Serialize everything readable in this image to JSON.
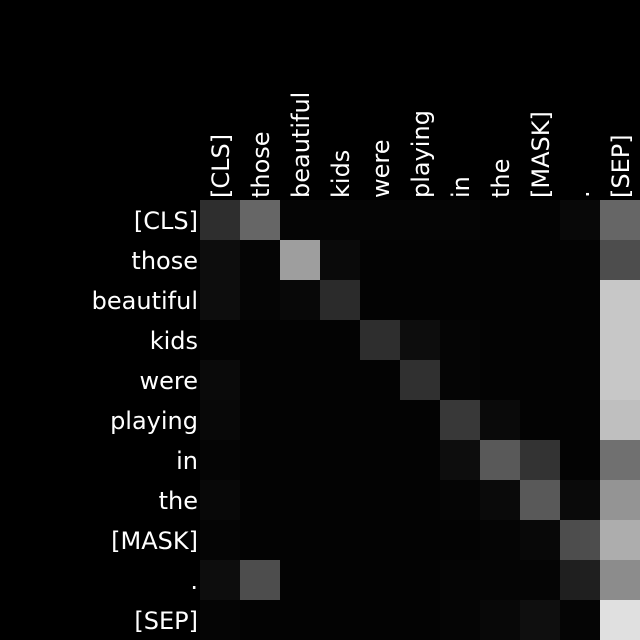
{
  "chart_data": {
    "type": "heatmap",
    "title": "",
    "xlabel": "",
    "ylabel": "",
    "x_labels": [
      "[CLS]",
      "those",
      "beautiful",
      "kids",
      "were",
      "playing",
      "in",
      "the",
      "[MASK]",
      ".",
      "[SEP]"
    ],
    "y_labels": [
      "[CLS]",
      "those",
      "beautiful",
      "kids",
      "were",
      "playing",
      "in",
      "the",
      "[MASK]",
      ".",
      "[SEP]"
    ],
    "colormap": "grayscale",
    "value_range": [
      0,
      1
    ],
    "values": [
      [
        0.18,
        0.4,
        0.02,
        0.02,
        0.02,
        0.02,
        0.02,
        0.01,
        0.01,
        0.03,
        0.4
      ],
      [
        0.05,
        0.02,
        0.62,
        0.04,
        0.01,
        0.01,
        0.01,
        0.01,
        0.01,
        0.01,
        0.3
      ],
      [
        0.05,
        0.02,
        0.03,
        0.17,
        0.01,
        0.01,
        0.01,
        0.01,
        0.01,
        0.01,
        0.78
      ],
      [
        0.01,
        0.01,
        0.01,
        0.01,
        0.18,
        0.05,
        0.02,
        0.01,
        0.01,
        0.01,
        0.78
      ],
      [
        0.04,
        0.01,
        0.01,
        0.01,
        0.01,
        0.19,
        0.02,
        0.01,
        0.01,
        0.01,
        0.78
      ],
      [
        0.03,
        0.01,
        0.01,
        0.01,
        0.01,
        0.01,
        0.22,
        0.04,
        0.01,
        0.01,
        0.75
      ],
      [
        0.02,
        0.01,
        0.01,
        0.01,
        0.01,
        0.01,
        0.05,
        0.35,
        0.2,
        0.01,
        0.44
      ],
      [
        0.03,
        0.01,
        0.01,
        0.01,
        0.01,
        0.01,
        0.02,
        0.04,
        0.35,
        0.04,
        0.58
      ],
      [
        0.02,
        0.01,
        0.01,
        0.01,
        0.01,
        0.01,
        0.01,
        0.02,
        0.03,
        0.3,
        0.68
      ],
      [
        0.05,
        0.3,
        0.01,
        0.01,
        0.01,
        0.01,
        0.02,
        0.02,
        0.02,
        0.12,
        0.55
      ],
      [
        0.02,
        0.01,
        0.01,
        0.01,
        0.01,
        0.01,
        0.02,
        0.03,
        0.06,
        0.02,
        0.88
      ]
    ]
  }
}
